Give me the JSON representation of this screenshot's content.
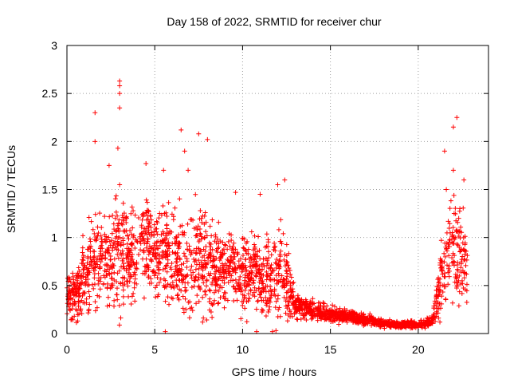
{
  "chart_data": {
    "type": "scatter",
    "title": "Day 158 of 2022, SRMTID for receiver chur",
    "xlabel": "GPS time / hours",
    "ylabel": "SRMTID / TECUs",
    "xlim": [
      0,
      24
    ],
    "ylim": [
      0,
      3
    ],
    "xticks": [
      0,
      5,
      10,
      15,
      20
    ],
    "yticks": [
      0,
      0.5,
      1,
      1.5,
      2,
      2.5,
      3
    ],
    "grid": true,
    "marker": "+",
    "color": "#ff0000",
    "series": [
      {
        "name": "SRMTID",
        "envelope": [
          {
            "x": 0.0,
            "mean": 0.4,
            "spread": 0.25
          },
          {
            "x": 0.5,
            "mean": 0.35,
            "spread": 0.25
          },
          {
            "x": 1.0,
            "mean": 0.6,
            "spread": 0.4
          },
          {
            "x": 1.5,
            "mean": 0.8,
            "spread": 0.5
          },
          {
            "x": 2.0,
            "mean": 0.75,
            "spread": 0.5
          },
          {
            "x": 2.5,
            "mean": 0.75,
            "spread": 0.55
          },
          {
            "x": 3.0,
            "mean": 0.85,
            "spread": 0.65
          },
          {
            "x": 3.5,
            "mean": 0.8,
            "spread": 0.5
          },
          {
            "x": 4.0,
            "mean": 0.8,
            "spread": 0.5
          },
          {
            "x": 4.5,
            "mean": 0.9,
            "spread": 0.5
          },
          {
            "x": 5.0,
            "mean": 0.9,
            "spread": 0.45
          },
          {
            "x": 5.5,
            "mean": 0.8,
            "spread": 0.5
          },
          {
            "x": 6.0,
            "mean": 0.8,
            "spread": 0.55
          },
          {
            "x": 6.5,
            "mean": 0.75,
            "spread": 0.5
          },
          {
            "x": 7.0,
            "mean": 0.7,
            "spread": 0.5
          },
          {
            "x": 7.5,
            "mean": 0.8,
            "spread": 0.6
          },
          {
            "x": 8.0,
            "mean": 0.7,
            "spread": 0.5
          },
          {
            "x": 8.5,
            "mean": 0.7,
            "spread": 0.45
          },
          {
            "x": 9.0,
            "mean": 0.65,
            "spread": 0.4
          },
          {
            "x": 9.5,
            "mean": 0.7,
            "spread": 0.4
          },
          {
            "x": 10.0,
            "mean": 0.6,
            "spread": 0.4
          },
          {
            "x": 10.5,
            "mean": 0.65,
            "spread": 0.4
          },
          {
            "x": 11.0,
            "mean": 0.6,
            "spread": 0.4
          },
          {
            "x": 11.5,
            "mean": 0.55,
            "spread": 0.4
          },
          {
            "x": 12.0,
            "mean": 0.7,
            "spread": 0.5
          },
          {
            "x": 12.5,
            "mean": 0.55,
            "spread": 0.4
          },
          {
            "x": 13.0,
            "mean": 0.3,
            "spread": 0.12
          },
          {
            "x": 14.0,
            "mean": 0.25,
            "spread": 0.1
          },
          {
            "x": 15.0,
            "mean": 0.2,
            "spread": 0.08
          },
          {
            "x": 16.0,
            "mean": 0.17,
            "spread": 0.07
          },
          {
            "x": 17.0,
            "mean": 0.15,
            "spread": 0.06
          },
          {
            "x": 18.0,
            "mean": 0.1,
            "spread": 0.04
          },
          {
            "x": 19.0,
            "mean": 0.09,
            "spread": 0.04
          },
          {
            "x": 20.0,
            "mean": 0.1,
            "spread": 0.04
          },
          {
            "x": 20.8,
            "mean": 0.12,
            "spread": 0.05
          },
          {
            "x": 21.0,
            "mean": 0.3,
            "spread": 0.2
          },
          {
            "x": 21.5,
            "mean": 0.7,
            "spread": 0.5
          },
          {
            "x": 22.0,
            "mean": 0.9,
            "spread": 0.6
          },
          {
            "x": 22.5,
            "mean": 0.8,
            "spread": 0.5
          },
          {
            "x": 22.8,
            "mean": 0.7,
            "spread": 0.4
          }
        ],
        "notable_points": [
          [
            3.0,
            2.63
          ],
          [
            3.0,
            2.58
          ],
          [
            3.0,
            2.5
          ],
          [
            3.0,
            2.35
          ],
          [
            2.9,
            1.93
          ],
          [
            3.0,
            1.55
          ],
          [
            1.6,
            2.3
          ],
          [
            1.6,
            2.0
          ],
          [
            2.4,
            1.75
          ],
          [
            6.5,
            2.12
          ],
          [
            7.5,
            2.08
          ],
          [
            8.0,
            2.02
          ],
          [
            6.7,
            1.9
          ],
          [
            4.5,
            1.77
          ],
          [
            5.5,
            1.7
          ],
          [
            6.9,
            1.7
          ],
          [
            9.6,
            1.47
          ],
          [
            11.0,
            1.45
          ],
          [
            12.0,
            1.55
          ],
          [
            12.4,
            1.6
          ],
          [
            5.6,
            0.02
          ],
          [
            10.8,
            0.02
          ],
          [
            11.7,
            0.02
          ],
          [
            11.9,
            0.03
          ],
          [
            22.2,
            2.25
          ],
          [
            22.0,
            2.15
          ],
          [
            21.5,
            1.9
          ],
          [
            22.0,
            1.7
          ],
          [
            22.6,
            1.6
          ],
          [
            21.6,
            1.5
          ]
        ]
      }
    ]
  }
}
